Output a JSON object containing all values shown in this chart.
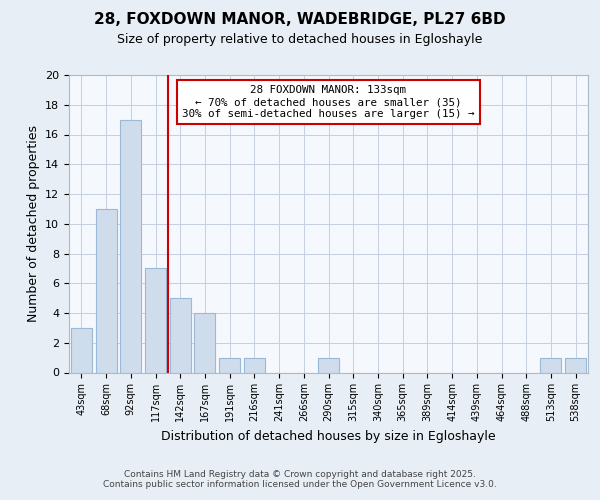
{
  "title": "28, FOXDOWN MANOR, WADEBRIDGE, PL27 6BD",
  "subtitle": "Size of property relative to detached houses in Egloshayle",
  "xlabel": "Distribution of detached houses by size in Egloshayle",
  "ylabel": "Number of detached properties",
  "bins": [
    "43sqm",
    "68sqm",
    "92sqm",
    "117sqm",
    "142sqm",
    "167sqm",
    "191sqm",
    "216sqm",
    "241sqm",
    "266sqm",
    "290sqm",
    "315sqm",
    "340sqm",
    "365sqm",
    "389sqm",
    "414sqm",
    "439sqm",
    "464sqm",
    "488sqm",
    "513sqm",
    "538sqm"
  ],
  "counts": [
    3,
    11,
    17,
    7,
    5,
    4,
    1,
    1,
    0,
    0,
    1,
    0,
    0,
    0,
    0,
    0,
    0,
    0,
    0,
    1,
    1
  ],
  "bar_color": "#cfdcec",
  "bar_edge_color": "#9ab8d8",
  "red_line_color": "#cc0000",
  "annotation_text": "28 FOXDOWN MANOR: 133sqm\n← 70% of detached houses are smaller (35)\n30% of semi-detached houses are larger (15) →",
  "annotation_box_color": "white",
  "annotation_box_edge_color": "#cc0000",
  "ylim": [
    0,
    20
  ],
  "yticks": [
    0,
    2,
    4,
    6,
    8,
    10,
    12,
    14,
    16,
    18,
    20
  ],
  "footer": "Contains HM Land Registry data © Crown copyright and database right 2025.\nContains public sector information licensed under the Open Government Licence v3.0.",
  "background_color": "#e8eef5",
  "plot_background": "#f5f8fc",
  "grid_color": "#c5cfe0",
  "title_fontsize": 11,
  "subtitle_fontsize": 9
}
